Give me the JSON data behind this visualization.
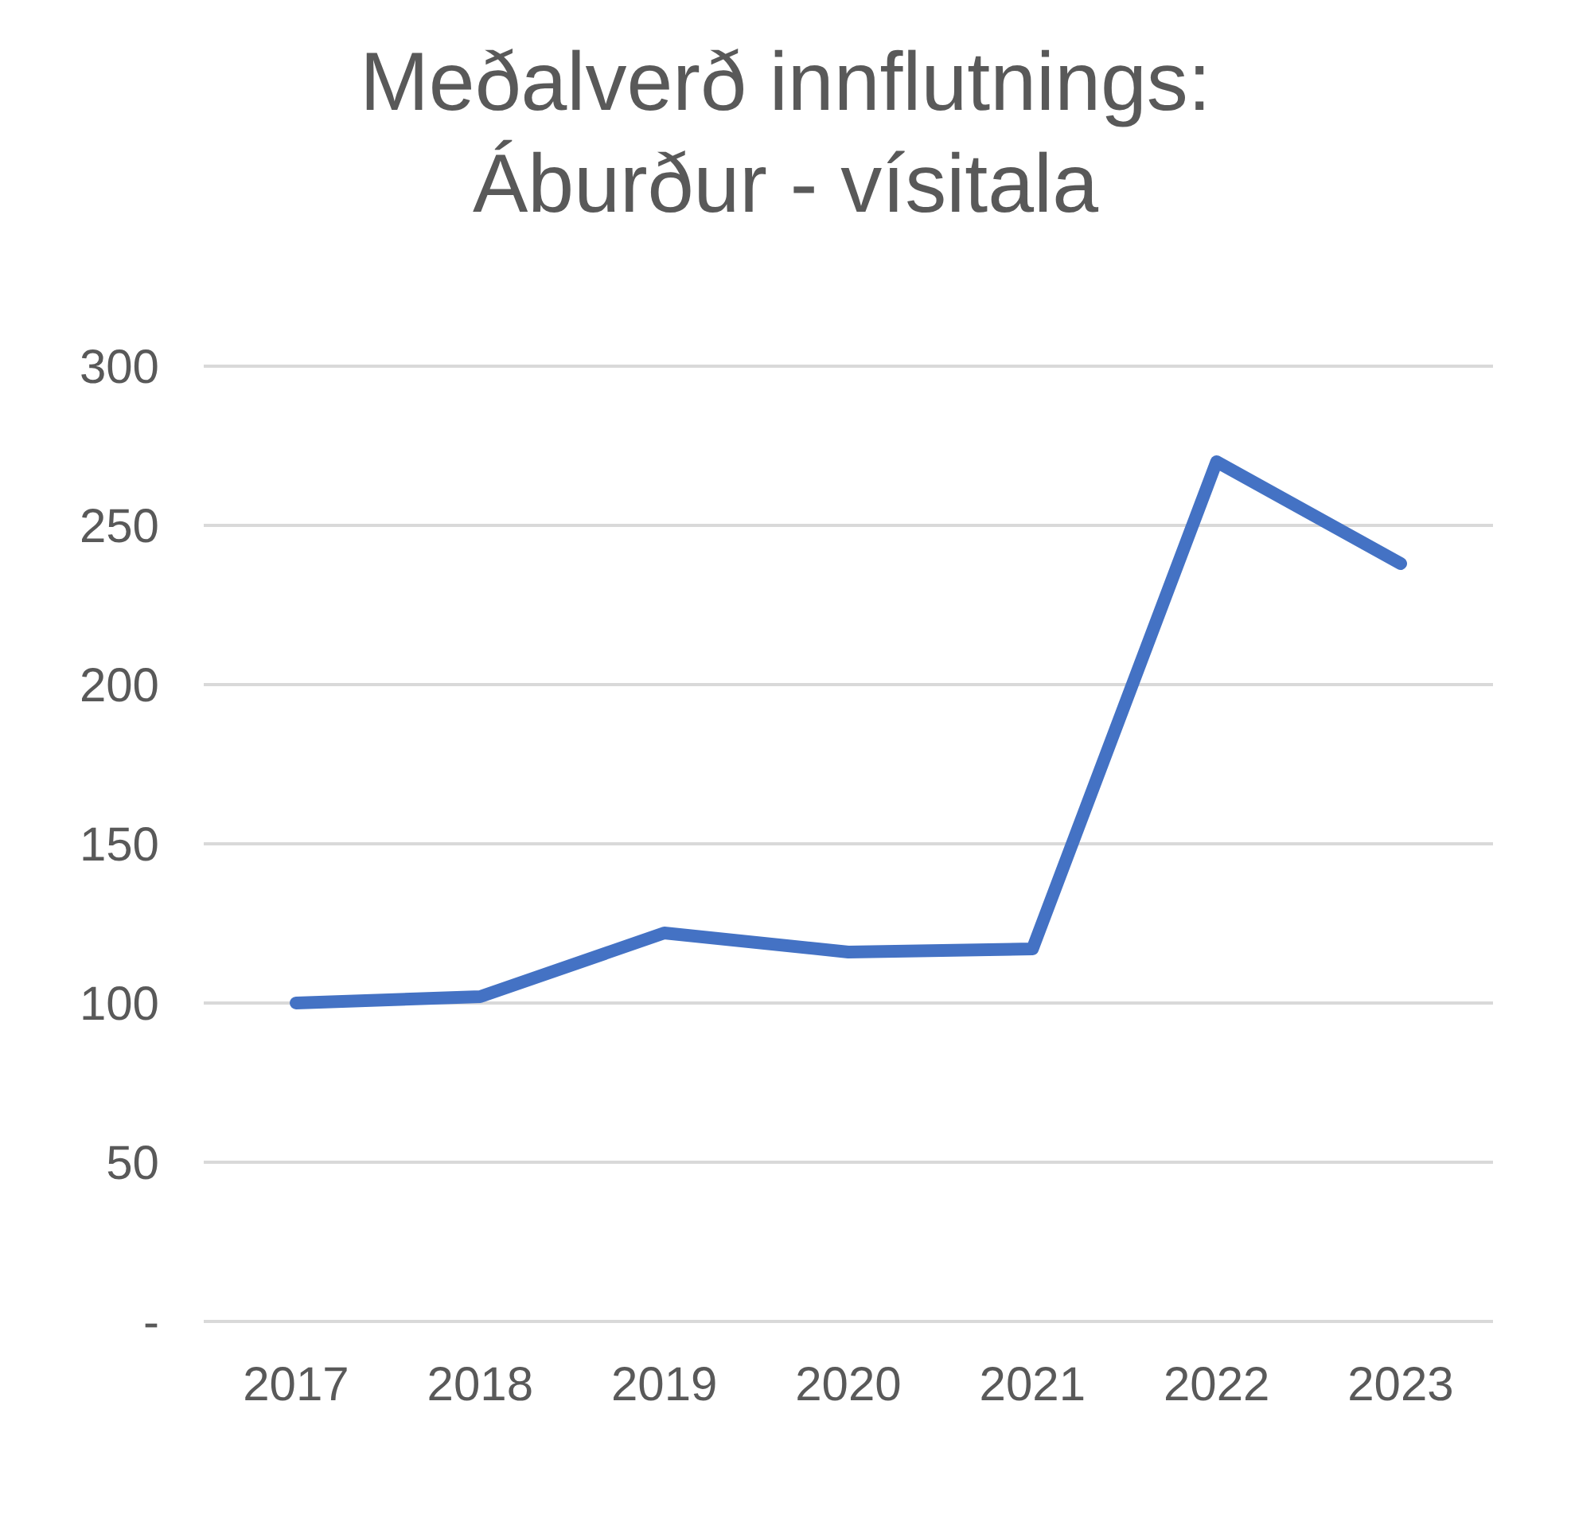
{
  "chart_data": {
    "type": "line",
    "title": "Meðalverð innflutnings: Áburður - vísitala",
    "categories": [
      "2017",
      "2018",
      "2019",
      "2020",
      "2021",
      "2022",
      "2023"
    ],
    "series": [
      {
        "color": "#4472c4",
        "values": [
          100,
          102,
          122,
          116,
          117,
          270,
          238
        ]
      }
    ],
    "ylim": [
      0,
      300
    ],
    "yticks": [
      {
        "value": 0,
        "label": "-"
      },
      50,
      100,
      150,
      200,
      250,
      300
    ],
    "grid": "y",
    "marker": "none"
  }
}
